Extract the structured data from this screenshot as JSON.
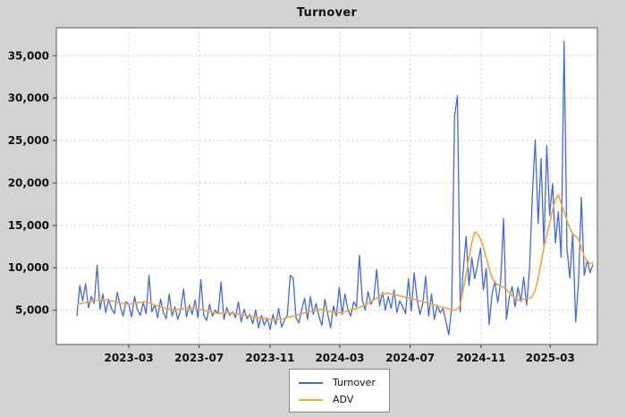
{
  "chart_data": {
    "type": "line",
    "title": "Turnover",
    "xlabel": "",
    "ylabel": "",
    "grid": true,
    "legend_position": "bottom-center",
    "x_start": "2022-12-01",
    "x_end": "2025-05-14",
    "x_step_days": 5,
    "ylim": [
      950,
      38300
    ],
    "x_ticks": [
      {
        "day": 90,
        "label": "2023-03"
      },
      {
        "day": 212,
        "label": "2023-07"
      },
      {
        "day": 335,
        "label": "2023-11"
      },
      {
        "day": 456,
        "label": "2024-03"
      },
      {
        "day": 578,
        "label": "2024-07"
      },
      {
        "day": 701,
        "label": "2024-11"
      },
      {
        "day": 821,
        "label": "2025-03"
      }
    ],
    "y_ticks": [
      {
        "value": 5000,
        "label": "5,000"
      },
      {
        "value": 10000,
        "label": "10,000"
      },
      {
        "value": 15000,
        "label": "15,000"
      },
      {
        "value": 20000,
        "label": "20,000"
      },
      {
        "value": 25000,
        "label": "25,000"
      },
      {
        "value": 30000,
        "label": "30,000"
      },
      {
        "value": 35000,
        "label": "35,000"
      }
    ],
    "series": [
      {
        "name": "Turnover",
        "color": "#4169E1",
        "values": [
          4300,
          7900,
          6100,
          8100,
          5300,
          6600,
          5800,
          10300,
          5100,
          6900,
          4700,
          6300,
          5200,
          4600,
          7100,
          5500,
          4300,
          6000,
          5700,
          4200,
          6600,
          5000,
          4400,
          5900,
          4600,
          9100,
          4800,
          5600,
          4100,
          6300,
          4700,
          4000,
          6900,
          4300,
          5400,
          3900,
          5100,
          7500,
          4200,
          5600,
          4500,
          6200,
          4100,
          8600,
          4400,
          3800,
          5700,
          4300,
          5000,
          4600,
          8300,
          3900,
          5300,
          4400,
          4800,
          4100,
          6000,
          3600,
          5100,
          4000,
          4500,
          3400,
          5000,
          2900,
          4400,
          3200,
          4100,
          2700,
          4500,
          3300,
          5200,
          3000,
          3800,
          4400,
          9100,
          8800,
          4100,
          3500,
          5100,
          6400,
          3900,
          6600,
          4500,
          5800,
          4200,
          3200,
          6300,
          4600,
          2900,
          5500,
          4300,
          7700,
          4500,
          6900,
          5100,
          4300,
          6000,
          5400,
          11500,
          6300,
          5000,
          7200,
          5700,
          6400,
          9800,
          5500,
          7100,
          5000,
          6600,
          5200,
          7400,
          4700,
          6100,
          5400,
          4600,
          8700,
          4900,
          9400,
          6300,
          4500,
          5800,
          9000,
          4300,
          6900,
          3900,
          5600,
          4700,
          5200,
          3700,
          2100,
          5400,
          27900,
          30300,
          4800,
          9600,
          13700,
          7900,
          11200,
          8700,
          10400,
          12300,
          7400,
          9900,
          3300,
          6900,
          8400,
          5900,
          8300,
          15800,
          3900,
          6500,
          7800,
          5400,
          7700,
          6000,
          8900,
          5600,
          9800,
          18600,
          25100,
          15200,
          22900,
          12600,
          24400,
          16200,
          19900,
          12900,
          16600,
          11200,
          36700,
          12200,
          8800,
          14100,
          3600,
          8200,
          18300,
          9100,
          10900,
          9400,
          10400
        ]
      },
      {
        "name": "ADV",
        "color": "#F2A93B",
        "values": [
          5700,
          5770,
          5830,
          5900,
          5970,
          6030,
          6100,
          6150,
          6200,
          6250,
          6200,
          6150,
          6100,
          6000,
          5900,
          5800,
          5770,
          5730,
          5700,
          5770,
          5830,
          5900,
          5930,
          5970,
          6000,
          5870,
          5730,
          5600,
          5500,
          5400,
          5300,
          5200,
          5150,
          5100,
          5050,
          5100,
          5150,
          5200,
          5230,
          5270,
          5300,
          5230,
          5170,
          5100,
          5000,
          4900,
          4800,
          4730,
          4670,
          4600,
          4650,
          4700,
          4750,
          4700,
          4650,
          4600,
          4530,
          4470,
          4400,
          4330,
          4270,
          4200,
          4150,
          4100,
          4050,
          4020,
          3980,
          3950,
          3930,
          3910,
          3900,
          3970,
          4030,
          4100,
          4200,
          4300,
          4400,
          4500,
          4600,
          4700,
          4770,
          4830,
          4900,
          4970,
          5030,
          5100,
          5000,
          4900,
          4800,
          4770,
          4730,
          4700,
          4770,
          4830,
          4900,
          5000,
          5100,
          5200,
          5330,
          5470,
          5600,
          5800,
          6000,
          6200,
          6430,
          6670,
          6900,
          6950,
          7000,
          6900,
          6830,
          6770,
          6700,
          6600,
          6500,
          6400,
          6330,
          6270,
          6200,
          6100,
          6000,
          5900,
          5800,
          5700,
          5600,
          5500,
          5400,
          5350,
          5250,
          5150,
          5050,
          5000,
          5100,
          5600,
          7400,
          9200,
          11200,
          13000,
          14200,
          14000,
          13400,
          12400,
          11200,
          9900,
          8800,
          8300,
          8000,
          7800,
          7700,
          7500,
          7000,
          6700,
          6400,
          6200,
          6100,
          6300,
          6400,
          6400,
          6600,
          7400,
          8800,
          10600,
          12400,
          13800,
          15200,
          16800,
          18000,
          18600,
          17600,
          16600,
          15600,
          14700,
          14000,
          13700,
          13400,
          12400,
          11300,
          10800,
          10500,
          10600
        ]
      }
    ]
  },
  "legend": {
    "items": [
      {
        "label": "Turnover",
        "color": "#4169E1"
      },
      {
        "label": "ADV",
        "color": "#F2A93B"
      }
    ]
  },
  "colors": {
    "figure_background": "#d3d3d3",
    "plot_background": "#ffffff",
    "grid": "#d6d6d6",
    "axis_frame": "#7f7f7f",
    "tick": "#555555",
    "tick_label": "#111111"
  }
}
